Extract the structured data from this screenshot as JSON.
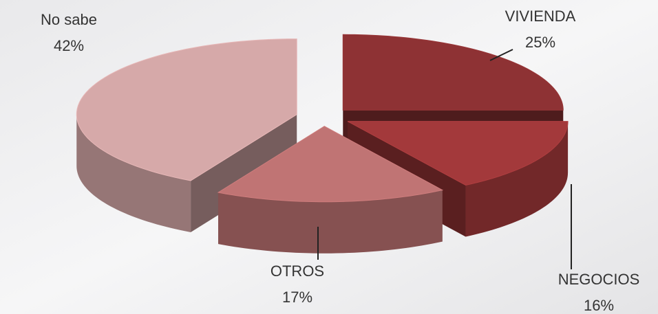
{
  "chart_data": {
    "type": "pie3d",
    "categories": [
      "VIVIENDA",
      "NEGOCIOS",
      "OTROS",
      "No sabe"
    ],
    "values": [
      25,
      16,
      17,
      42
    ],
    "value_labels": [
      "25%",
      "16%",
      "17%",
      "42%"
    ],
    "colors": [
      "#8e3234",
      "#a3393b",
      "#c07474",
      "#d6a9a9"
    ]
  }
}
